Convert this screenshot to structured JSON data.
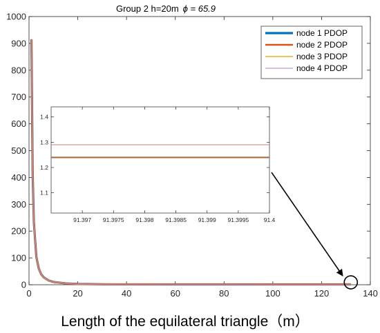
{
  "chart_data": {
    "type": "line",
    "title": "Group 2  h=20m",
    "title_phi": "ϕ = 65.9",
    "xlabel": "Length of the equilateral triangle（m）",
    "ylabel": "",
    "xlim": [
      0,
      140
    ],
    "ylim": [
      0,
      1000
    ],
    "x_ticks": [
      "0",
      "20",
      "40",
      "60",
      "80",
      "100",
      "120",
      "140"
    ],
    "y_ticks": [
      "0",
      "100",
      "200",
      "300",
      "400",
      "500",
      "600",
      "700",
      "800",
      "900",
      "1000"
    ],
    "grid": false,
    "legend_position": "top-right",
    "x": [
      1,
      1.5,
      2,
      3,
      4,
      5,
      6,
      8,
      10,
      15,
      20,
      30,
      40,
      60,
      80,
      100,
      120,
      132
    ],
    "series": [
      {
        "name": "node 1 PDOP",
        "color": "#0072BD",
        "values": [
          915,
          410,
          232,
          104,
          60,
          39,
          28,
          16,
          10.5,
          5,
          3,
          1.8,
          1.5,
          1.3,
          1.25,
          1.24,
          1.24,
          1.24
        ]
      },
      {
        "name": "node 2 PDOP",
        "color": "#D95319",
        "values": [
          915,
          410,
          232,
          104,
          60,
          39,
          28,
          16,
          10.5,
          5,
          3,
          1.8,
          1.5,
          1.3,
          1.25,
          1.24,
          1.24,
          1.24
        ]
      },
      {
        "name": "node 3 PDOP",
        "color": "#EDB120",
        "values": [
          915,
          410,
          232,
          104,
          60,
          39,
          28,
          16,
          10.5,
          5,
          3,
          1.8,
          1.5,
          1.3,
          1.25,
          1.24,
          1.24,
          1.24
        ]
      },
      {
        "name": "node 4 PDOP",
        "color": "#B07CC6",
        "values": [
          916,
          411,
          233,
          105,
          61,
          40,
          29,
          17,
          11,
          5.5,
          3.4,
          2,
          1.6,
          1.35,
          1.3,
          1.29,
          1.29,
          1.29
        ]
      }
    ],
    "inset": {
      "xlim": [
        91.3965,
        91.4
      ],
      "ylim": [
        1.02,
        1.44
      ],
      "x_ticks": [
        "91.397",
        "91.3975",
        "91.398",
        "91.3985",
        "91.399",
        "91.3995",
        "91.4"
      ],
      "x_tick_values": [
        91.397,
        91.3975,
        91.398,
        91.3985,
        91.399,
        91.3995,
        91.4
      ],
      "y_ticks": [
        "1.1",
        "1.2",
        "1.3",
        "1.4"
      ],
      "y_tick_values": [
        1.1,
        1.2,
        1.3,
        1.4
      ],
      "lines": [
        {
          "series": "node 1 PDOP",
          "value": 1.24,
          "color": "#0072BD"
        },
        {
          "series": "node 3 PDOP",
          "value": 1.24,
          "color": "#EDB120"
        },
        {
          "series": "node 2 PDOP",
          "value": 1.24,
          "color": "#D95319"
        },
        {
          "series": "node 4 PDOP",
          "value": 1.29,
          "color": "#D08070"
        }
      ]
    },
    "highlight_point": {
      "x": 132,
      "y": 1.24
    }
  }
}
